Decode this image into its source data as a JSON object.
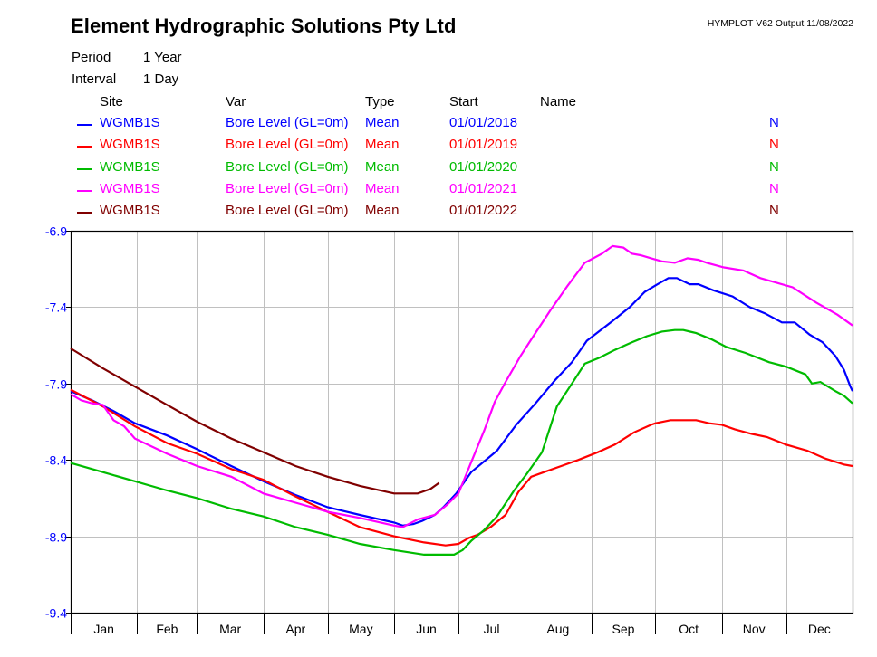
{
  "header": {
    "title": "Element Hydrographic Solutions Pty Ltd",
    "meta": "HYMPLOT V62  Output 11/08/2022",
    "period_label": "Period",
    "period_value": "1 Year",
    "interval_label": "Interval",
    "interval_value": "1 Day"
  },
  "legend": {
    "columns": [
      "Site",
      "Var",
      "Type",
      "Start",
      "Name"
    ],
    "rows": [
      {
        "site": "WGMB1S",
        "var": "Bore Level (GL=0m)",
        "type": "Mean",
        "start": "01/01/2018",
        "flag": "N",
        "color": "#0000ff"
      },
      {
        "site": "WGMB1S",
        "var": "Bore Level (GL=0m)",
        "type": "Mean",
        "start": "01/01/2019",
        "flag": "N",
        "color": "#ff0000"
      },
      {
        "site": "WGMB1S",
        "var": "Bore Level (GL=0m)",
        "type": "Mean",
        "start": "01/01/2020",
        "flag": "N",
        "color": "#00bb00"
      },
      {
        "site": "WGMB1S",
        "var": "Bore Level (GL=0m)",
        "type": "Mean",
        "start": "01/01/2021",
        "flag": "N",
        "color": "#ff00ff"
      },
      {
        "site": "WGMB1S",
        "var": "Bore Level (GL=0m)",
        "type": "Mean",
        "start": "01/01/2022",
        "flag": "N",
        "color": "#800000"
      }
    ]
  },
  "chart_data": {
    "type": "line",
    "title": "Element Hydrographic Solutions Pty Ltd",
    "xlabel": "",
    "ylabel": "Bore Level (GL=0m)",
    "x_unit": "day of year",
    "xlim": [
      0,
      365
    ],
    "ylim": [
      -9.4,
      -6.9
    ],
    "yticks": [
      -6.9,
      -7.4,
      -7.9,
      -8.4,
      -8.9,
      -9.4
    ],
    "ytick_labels": [
      "-6.9",
      "-7.4",
      "-7.9",
      "-8.4",
      "-8.9",
      "-9.4"
    ],
    "month_labels": [
      "Jan",
      "Feb",
      "Mar",
      "Apr",
      "May",
      "Jun",
      "Jul",
      "Aug",
      "Sep",
      "Oct",
      "Nov",
      "Dec"
    ],
    "month_starts": [
      0,
      31,
      59,
      90,
      120,
      151,
      181,
      212,
      243,
      273,
      304,
      334,
      365
    ],
    "grid": true,
    "series": [
      {
        "name": "WGMB1S 2018",
        "color": "#0000ff",
        "points": [
          [
            0,
            -7.95
          ],
          [
            10,
            -8.01
          ],
          [
            20,
            -8.08
          ],
          [
            30,
            -8.16
          ],
          [
            45,
            -8.24
          ],
          [
            59,
            -8.33
          ],
          [
            75,
            -8.44
          ],
          [
            90,
            -8.54
          ],
          [
            105,
            -8.63
          ],
          [
            120,
            -8.71
          ],
          [
            135,
            -8.76
          ],
          [
            151,
            -8.81
          ],
          [
            155,
            -8.83
          ],
          [
            160,
            -8.82
          ],
          [
            164,
            -8.8
          ],
          [
            170,
            -8.76
          ],
          [
            174,
            -8.71
          ],
          [
            180,
            -8.62
          ],
          [
            187,
            -8.48
          ],
          [
            193,
            -8.41
          ],
          [
            199,
            -8.34
          ],
          [
            208,
            -8.17
          ],
          [
            217,
            -8.03
          ],
          [
            226,
            -7.88
          ],
          [
            234,
            -7.76
          ],
          [
            241,
            -7.62
          ],
          [
            253,
            -7.49
          ],
          [
            261,
            -7.4
          ],
          [
            268,
            -7.3
          ],
          [
            274,
            -7.25
          ],
          [
            279,
            -7.21
          ],
          [
            283,
            -7.21
          ],
          [
            289,
            -7.25
          ],
          [
            293,
            -7.25
          ],
          [
            300,
            -7.29
          ],
          [
            309,
            -7.33
          ],
          [
            317,
            -7.4
          ],
          [
            324,
            -7.44
          ],
          [
            332,
            -7.5
          ],
          [
            338,
            -7.5
          ],
          [
            345,
            -7.58
          ],
          [
            351,
            -7.63
          ],
          [
            357,
            -7.72
          ],
          [
            361,
            -7.81
          ],
          [
            364,
            -7.92
          ],
          [
            365,
            -7.95
          ]
        ]
      },
      {
        "name": "WGMB1S 2019",
        "color": "#ff0000",
        "points": [
          [
            0,
            -7.94
          ],
          [
            15,
            -8.05
          ],
          [
            30,
            -8.18
          ],
          [
            45,
            -8.29
          ],
          [
            59,
            -8.36
          ],
          [
            75,
            -8.46
          ],
          [
            90,
            -8.53
          ],
          [
            105,
            -8.64
          ],
          [
            120,
            -8.74
          ],
          [
            135,
            -8.84
          ],
          [
            151,
            -8.9
          ],
          [
            165,
            -8.94
          ],
          [
            175,
            -8.96
          ],
          [
            181,
            -8.95
          ],
          [
            186,
            -8.91
          ],
          [
            190,
            -8.89
          ],
          [
            196,
            -8.84
          ],
          [
            203,
            -8.76
          ],
          [
            209,
            -8.61
          ],
          [
            215,
            -8.51
          ],
          [
            221,
            -8.48
          ],
          [
            229,
            -8.44
          ],
          [
            237,
            -8.4
          ],
          [
            246,
            -8.35
          ],
          [
            254,
            -8.3
          ],
          [
            263,
            -8.22
          ],
          [
            271,
            -8.17
          ],
          [
            273,
            -8.16
          ],
          [
            280,
            -8.14
          ],
          [
            285,
            -8.14
          ],
          [
            292,
            -8.14
          ],
          [
            298,
            -8.16
          ],
          [
            304,
            -8.17
          ],
          [
            310,
            -8.2
          ],
          [
            318,
            -8.23
          ],
          [
            325,
            -8.25
          ],
          [
            334,
            -8.3
          ],
          [
            344,
            -8.34
          ],
          [
            352,
            -8.39
          ],
          [
            361,
            -8.43
          ],
          [
            365,
            -8.44
          ]
        ]
      },
      {
        "name": "WGMB1S 2020",
        "color": "#00bb00",
        "points": [
          [
            0,
            -8.42
          ],
          [
            15,
            -8.48
          ],
          [
            30,
            -8.54
          ],
          [
            45,
            -8.6
          ],
          [
            59,
            -8.65
          ],
          [
            75,
            -8.72
          ],
          [
            90,
            -8.77
          ],
          [
            105,
            -8.84
          ],
          [
            120,
            -8.89
          ],
          [
            135,
            -8.95
          ],
          [
            151,
            -8.99
          ],
          [
            165,
            -9.02
          ],
          [
            175,
            -9.02
          ],
          [
            179,
            -9.02
          ],
          [
            183,
            -8.99
          ],
          [
            187,
            -8.93
          ],
          [
            193,
            -8.86
          ],
          [
            199,
            -8.77
          ],
          [
            207,
            -8.6
          ],
          [
            213,
            -8.49
          ],
          [
            220,
            -8.35
          ],
          [
            227,
            -8.05
          ],
          [
            234,
            -7.9
          ],
          [
            240,
            -7.77
          ],
          [
            247,
            -7.73
          ],
          [
            254,
            -7.68
          ],
          [
            262,
            -7.63
          ],
          [
            269,
            -7.59
          ],
          [
            276,
            -7.56
          ],
          [
            282,
            -7.55
          ],
          [
            286,
            -7.55
          ],
          [
            292,
            -7.57
          ],
          [
            299,
            -7.61
          ],
          [
            306,
            -7.66
          ],
          [
            315,
            -7.7
          ],
          [
            326,
            -7.76
          ],
          [
            334,
            -7.79
          ],
          [
            343,
            -7.84
          ],
          [
            346,
            -7.9
          ],
          [
            350,
            -7.89
          ],
          [
            357,
            -7.95
          ],
          [
            361,
            -7.98
          ],
          [
            365,
            -8.03
          ]
        ]
      },
      {
        "name": "WGMB1S 2021",
        "color": "#ff00ff",
        "points": [
          [
            0,
            -7.97
          ],
          [
            5,
            -8.01
          ],
          [
            10,
            -8.03
          ],
          [
            15,
            -8.04
          ],
          [
            20,
            -8.14
          ],
          [
            25,
            -8.18
          ],
          [
            30,
            -8.26
          ],
          [
            45,
            -8.36
          ],
          [
            59,
            -8.44
          ],
          [
            75,
            -8.51
          ],
          [
            90,
            -8.62
          ],
          [
            105,
            -8.68
          ],
          [
            120,
            -8.74
          ],
          [
            135,
            -8.78
          ],
          [
            151,
            -8.83
          ],
          [
            155,
            -8.84
          ],
          [
            162,
            -8.79
          ],
          [
            170,
            -8.76
          ],
          [
            176,
            -8.69
          ],
          [
            181,
            -8.62
          ],
          [
            188,
            -8.38
          ],
          [
            193,
            -8.21
          ],
          [
            198,
            -8.02
          ],
          [
            203,
            -7.89
          ],
          [
            210,
            -7.72
          ],
          [
            216,
            -7.59
          ],
          [
            224,
            -7.42
          ],
          [
            232,
            -7.26
          ],
          [
            240,
            -7.11
          ],
          [
            248,
            -7.05
          ],
          [
            253,
            -7.0
          ],
          [
            258,
            -7.01
          ],
          [
            262,
            -7.05
          ],
          [
            266,
            -7.06
          ],
          [
            271,
            -7.08
          ],
          [
            276,
            -7.1
          ],
          [
            282,
            -7.11
          ],
          [
            288,
            -7.08
          ],
          [
            293,
            -7.09
          ],
          [
            297,
            -7.11
          ],
          [
            305,
            -7.14
          ],
          [
            314,
            -7.16
          ],
          [
            322,
            -7.21
          ],
          [
            337,
            -7.27
          ],
          [
            348,
            -7.37
          ],
          [
            358,
            -7.45
          ],
          [
            365,
            -7.52
          ]
        ]
      },
      {
        "name": "WGMB1S 2022",
        "color": "#800000",
        "points": [
          [
            0,
            -7.67
          ],
          [
            15,
            -7.8
          ],
          [
            30,
            -7.92
          ],
          [
            45,
            -8.04
          ],
          [
            59,
            -8.15
          ],
          [
            75,
            -8.26
          ],
          [
            90,
            -8.35
          ],
          [
            105,
            -8.44
          ],
          [
            120,
            -8.51
          ],
          [
            135,
            -8.57
          ],
          [
            151,
            -8.62
          ],
          [
            162,
            -8.62
          ],
          [
            168,
            -8.59
          ],
          [
            172,
            -8.55
          ]
        ]
      }
    ]
  }
}
